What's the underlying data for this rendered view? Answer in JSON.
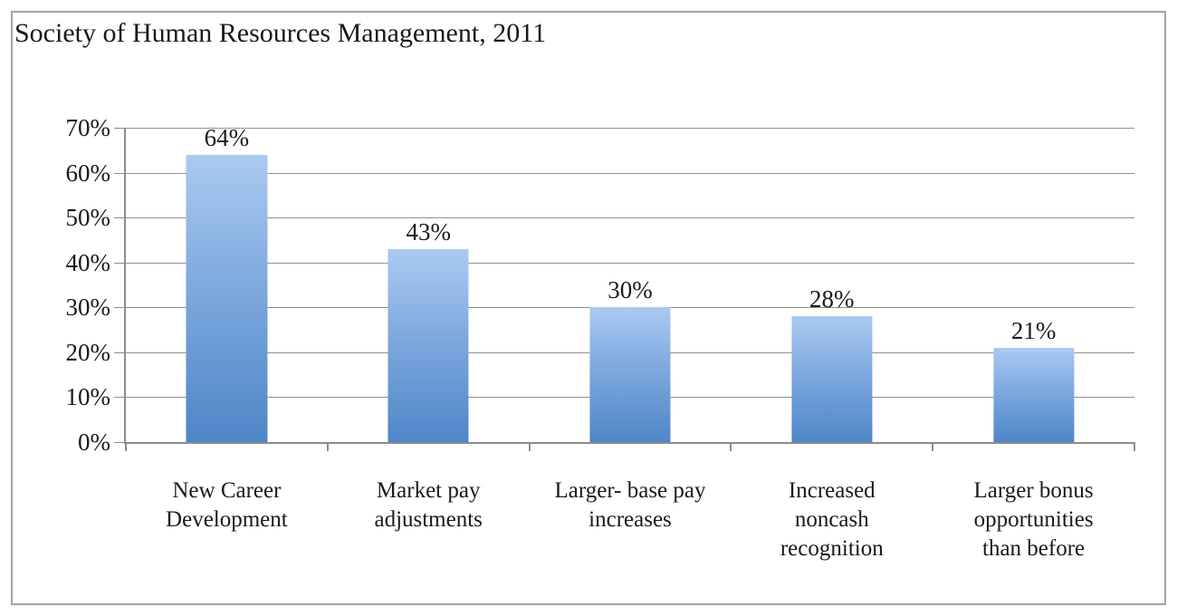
{
  "chart_data": {
    "type": "bar",
    "title": "Society of Human Resources Management, 2011",
    "categories": [
      "New Career\nDevelopment",
      "Market pay\nadjustments",
      "Larger- base pay\nincreases",
      "Increased\nnoncash\nrecognition",
      "Larger bonus\nopportunities\nthan before"
    ],
    "values": [
      64,
      43,
      30,
      28,
      21
    ],
    "data_labels": [
      "64%",
      "43%",
      "30%",
      "28%",
      "21%"
    ],
    "xlabel": "",
    "ylabel": "",
    "ylim": [
      0,
      70
    ],
    "ytick_step": 10,
    "ytick_labels": [
      "0%",
      "10%",
      "20%",
      "30%",
      "40%",
      "50%",
      "60%",
      "70%"
    ],
    "grid": true,
    "legend": "none",
    "colors": {
      "bar_gradient_top": "#abcaf2",
      "bar_gradient_bottom": "#4e86c8",
      "gridline": "#909090",
      "axis": "#8c8c8c",
      "frame_border": "#a6a6a6",
      "text": "#1a1a1a",
      "background": "#ffffff"
    }
  }
}
